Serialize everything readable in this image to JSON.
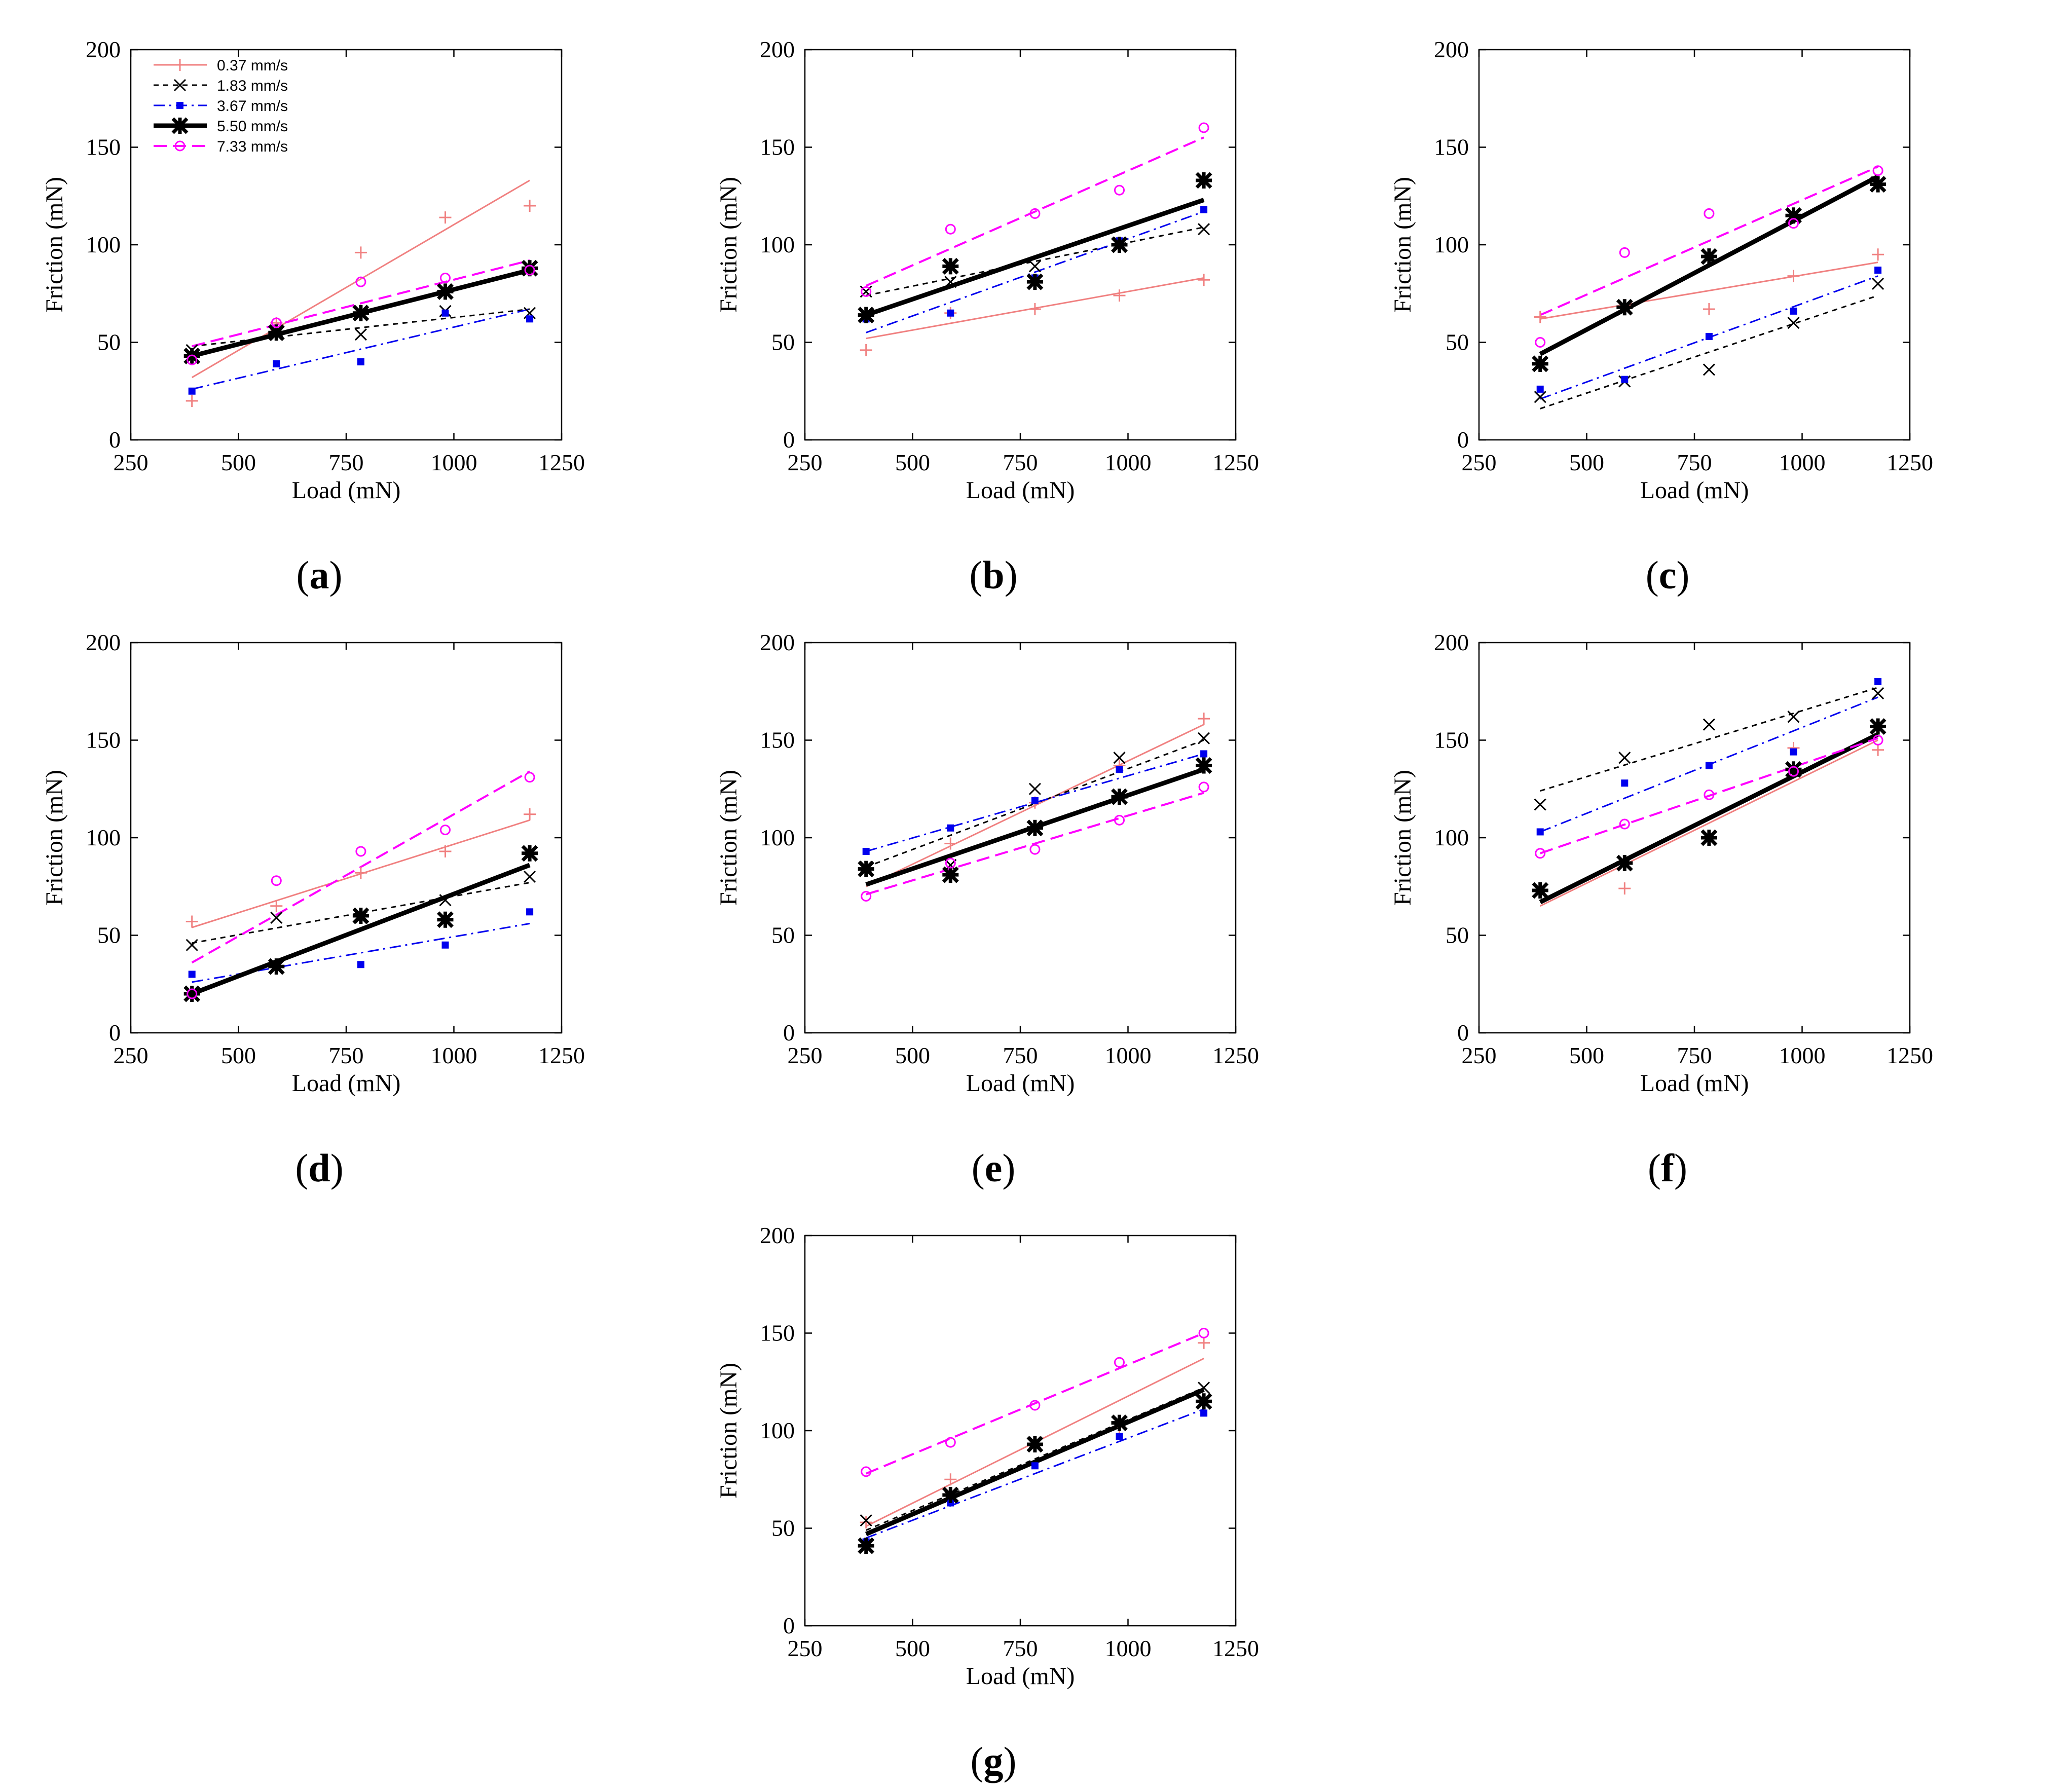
{
  "figure": {
    "legend": [
      {
        "key": "s037",
        "label": "0.37 mm/s",
        "color": "#f08080",
        "dash": "",
        "width": 3,
        "marker": "plus"
      },
      {
        "key": "s183",
        "label": "1.83 mm/s",
        "color": "#000000",
        "dash": "10,9",
        "width": 3,
        "marker": "x"
      },
      {
        "key": "s367",
        "label": "3.67 mm/s",
        "color": "#0000ee",
        "dash": "22,9,4,9",
        "width": 3,
        "marker": "square"
      },
      {
        "key": "s550",
        "label": "5.50 mm/s",
        "color": "#000000",
        "dash": "",
        "width": 9,
        "marker": "star"
      },
      {
        "key": "s733",
        "label": "7.33 mm/s",
        "color": "#ff00ff",
        "dash": "26,12",
        "width": 4,
        "marker": "circle"
      }
    ]
  },
  "chart_data": [
    {
      "panel": "a",
      "type": "scatter",
      "xlabel": "Load (mN)",
      "ylabel": "Friction (mN)",
      "xlim": [
        250,
        1250
      ],
      "ylim": [
        0,
        200
      ],
      "xticks": [
        250,
        500,
        750,
        1000,
        1250
      ],
      "yticks": [
        0,
        50,
        100,
        150,
        200
      ],
      "x": [
        392,
        588,
        784,
        980,
        1176
      ],
      "show_legend": true,
      "series": [
        {
          "name": "0.37 mm/s",
          "values": [
            20,
            60,
            96,
            114,
            120
          ],
          "fit": [
            32,
            133
          ]
        },
        {
          "name": "1.83 mm/s",
          "values": [
            46,
            54,
            54,
            66,
            65
          ],
          "fit": [
            48,
            67
          ]
        },
        {
          "name": "3.67 mm/s",
          "values": [
            25,
            39,
            40,
            65,
            62
          ],
          "fit": [
            26,
            67
          ]
        },
        {
          "name": "5.50 mm/s",
          "values": [
            43,
            55,
            65,
            76,
            88
          ],
          "fit": [
            43,
            87
          ]
        },
        {
          "name": "7.33 mm/s",
          "values": [
            41,
            60,
            81,
            83,
            87
          ],
          "fit": [
            48,
            92
          ]
        }
      ]
    },
    {
      "panel": "b",
      "type": "scatter",
      "xlabel": "Load (mN)",
      "ylabel": "Friction (mN)",
      "xlim": [
        250,
        1250
      ],
      "ylim": [
        0,
        200
      ],
      "xticks": [
        250,
        500,
        750,
        1000,
        1250
      ],
      "yticks": [
        0,
        50,
        100,
        150,
        200
      ],
      "x": [
        392,
        588,
        784,
        980,
        1176
      ],
      "show_legend": false,
      "series": [
        {
          "name": "0.37 mm/s",
          "values": [
            46,
            65,
            67,
            74,
            82
          ],
          "fit": [
            52,
            83
          ]
        },
        {
          "name": "1.83 mm/s",
          "values": [
            76,
            81,
            89,
            101,
            108
          ],
          "fit": [
            74,
            109
          ]
        },
        {
          "name": "3.67 mm/s",
          "values": [
            62,
            65,
            83,
            102,
            118
          ],
          "fit": [
            55,
            117
          ]
        },
        {
          "name": "5.50 mm/s",
          "values": [
            64,
            89,
            81,
            100,
            133
          ],
          "fit": [
            64,
            123
          ]
        },
        {
          "name": "7.33 mm/s",
          "values": [
            76,
            108,
            116,
            128,
            160
          ],
          "fit": [
            79,
            155
          ]
        }
      ]
    },
    {
      "panel": "c",
      "type": "scatter",
      "xlabel": "Load (mN)",
      "ylabel": "Friction (mN)",
      "xlim": [
        250,
        1250
      ],
      "ylim": [
        0,
        200
      ],
      "xticks": [
        250,
        500,
        750,
        1000,
        1250
      ],
      "yticks": [
        0,
        50,
        100,
        150,
        200
      ],
      "x": [
        392,
        588,
        784,
        980,
        1176
      ],
      "show_legend": false,
      "series": [
        {
          "name": "0.37 mm/s",
          "values": [
            63,
            69,
            67,
            84,
            95
          ],
          "fit": [
            62,
            91
          ]
        },
        {
          "name": "1.83 mm/s",
          "values": [
            22,
            30,
            36,
            60,
            80
          ],
          "fit": [
            16,
            74
          ]
        },
        {
          "name": "3.67 mm/s",
          "values": [
            26,
            31,
            53,
            66,
            87
          ],
          "fit": [
            21,
            84
          ]
        },
        {
          "name": "5.50 mm/s",
          "values": [
            39,
            68,
            94,
            115,
            131
          ],
          "fit": [
            44,
            135
          ]
        },
        {
          "name": "7.33 mm/s",
          "values": [
            50,
            96,
            116,
            111,
            138
          ],
          "fit": [
            64,
            140
          ]
        }
      ]
    },
    {
      "panel": "d",
      "type": "scatter",
      "xlabel": "Load (mN)",
      "ylabel": "Friction (mN)",
      "xlim": [
        250,
        1250
      ],
      "ylim": [
        0,
        200
      ],
      "xticks": [
        250,
        500,
        750,
        1000,
        1250
      ],
      "yticks": [
        0,
        50,
        100,
        150,
        200
      ],
      "x": [
        392,
        588,
        784,
        980,
        1176
      ],
      "show_legend": false,
      "series": [
        {
          "name": "0.37 mm/s",
          "values": [
            57,
            65,
            82,
            93,
            112
          ],
          "fit": [
            54,
            109
          ]
        },
        {
          "name": "1.83 mm/s",
          "values": [
            45,
            59,
            59,
            68,
            80
          ],
          "fit": [
            46,
            77
          ]
        },
        {
          "name": "3.67 mm/s",
          "values": [
            30,
            34,
            35,
            45,
            62
          ],
          "fit": [
            26,
            56
          ]
        },
        {
          "name": "5.50 mm/s",
          "values": [
            20,
            34,
            60,
            58,
            92
          ],
          "fit": [
            20,
            86
          ]
        },
        {
          "name": "7.33 mm/s",
          "values": [
            20,
            78,
            93,
            104,
            131
          ],
          "fit": [
            36,
            134
          ]
        }
      ]
    },
    {
      "panel": "e",
      "type": "scatter",
      "xlabel": "Load (mN)",
      "ylabel": "Friction (mN)",
      "xlim": [
        250,
        1250
      ],
      "ylim": [
        0,
        200
      ],
      "xticks": [
        250,
        500,
        750,
        1000,
        1250
      ],
      "yticks": [
        0,
        50,
        100,
        150,
        200
      ],
      "x": [
        392,
        588,
        784,
        980,
        1176
      ],
      "show_legend": false,
      "series": [
        {
          "name": "0.37 mm/s",
          "values": [
            84,
            97,
            118,
            137,
            161
          ],
          "fit": [
            75,
            158
          ]
        },
        {
          "name": "1.83 mm/s",
          "values": [
            85,
            86,
            125,
            141,
            151
          ],
          "fit": [
            85,
            150
          ]
        },
        {
          "name": "3.67 mm/s",
          "values": [
            93,
            105,
            119,
            135,
            143
          ],
          "fit": [
            93,
            143
          ]
        },
        {
          "name": "5.50 mm/s",
          "values": [
            84,
            81,
            105,
            121,
            137
          ],
          "fit": [
            76,
            135
          ]
        },
        {
          "name": "7.33 mm/s",
          "values": [
            70,
            87,
            94,
            109,
            126
          ],
          "fit": [
            71,
            123
          ]
        }
      ]
    },
    {
      "panel": "f",
      "type": "scatter",
      "xlabel": "Load (mN)",
      "ylabel": "Friction (mN)",
      "xlim": [
        250,
        1250
      ],
      "ylim": [
        0,
        200
      ],
      "xticks": [
        250,
        500,
        750,
        1000,
        1250
      ],
      "yticks": [
        0,
        50,
        100,
        150,
        200
      ],
      "x": [
        392,
        588,
        784,
        980,
        1176
      ],
      "show_legend": false,
      "series": [
        {
          "name": "0.37 mm/s",
          "values": [
            73,
            74,
            100,
            146,
            145
          ],
          "fit": [
            65,
            150
          ]
        },
        {
          "name": "1.83 mm/s",
          "values": [
            117,
            141,
            158,
            162,
            174
          ],
          "fit": [
            124,
            177
          ]
        },
        {
          "name": "3.67 mm/s",
          "values": [
            103,
            128,
            137,
            144,
            180
          ],
          "fit": [
            103,
            172
          ]
        },
        {
          "name": "5.50 mm/s",
          "values": [
            73,
            87,
            100,
            135,
            157
          ],
          "fit": [
            67,
            153
          ]
        },
        {
          "name": "7.33 mm/s",
          "values": [
            92,
            107,
            122,
            134,
            150
          ],
          "fit": [
            92,
            151
          ]
        }
      ]
    },
    {
      "panel": "g",
      "type": "scatter",
      "xlabel": "Load (mN)",
      "ylabel": "Friction (mN)",
      "xlim": [
        250,
        1250
      ],
      "ylim": [
        0,
        200
      ],
      "xticks": [
        250,
        500,
        750,
        1000,
        1250
      ],
      "yticks": [
        0,
        50,
        100,
        150,
        200
      ],
      "x": [
        392,
        588,
        784,
        980,
        1176
      ],
      "show_legend": false,
      "series": [
        {
          "name": "0.37 mm/s",
          "values": [
            53,
            75,
            93,
            102,
            145
          ],
          "fit": [
            51,
            137
          ]
        },
        {
          "name": "1.83 mm/s",
          "values": [
            54,
            66,
            94,
            104,
            122
          ],
          "fit": [
            49,
            122
          ]
        },
        {
          "name": "3.67 mm/s",
          "values": [
            43,
            63,
            82,
            97,
            109
          ],
          "fit": [
            45,
            111
          ]
        },
        {
          "name": "5.50 mm/s",
          "values": [
            41,
            67,
            93,
            104,
            115
          ],
          "fit": [
            47,
            121
          ]
        },
        {
          "name": "7.33 mm/s",
          "values": [
            79,
            94,
            113,
            135,
            150
          ],
          "fit": [
            78,
            150
          ]
        }
      ]
    }
  ],
  "labels": {
    "a": "a",
    "b": "b",
    "c": "c",
    "d": "d",
    "e": "e",
    "f": "f",
    "g": "g"
  }
}
